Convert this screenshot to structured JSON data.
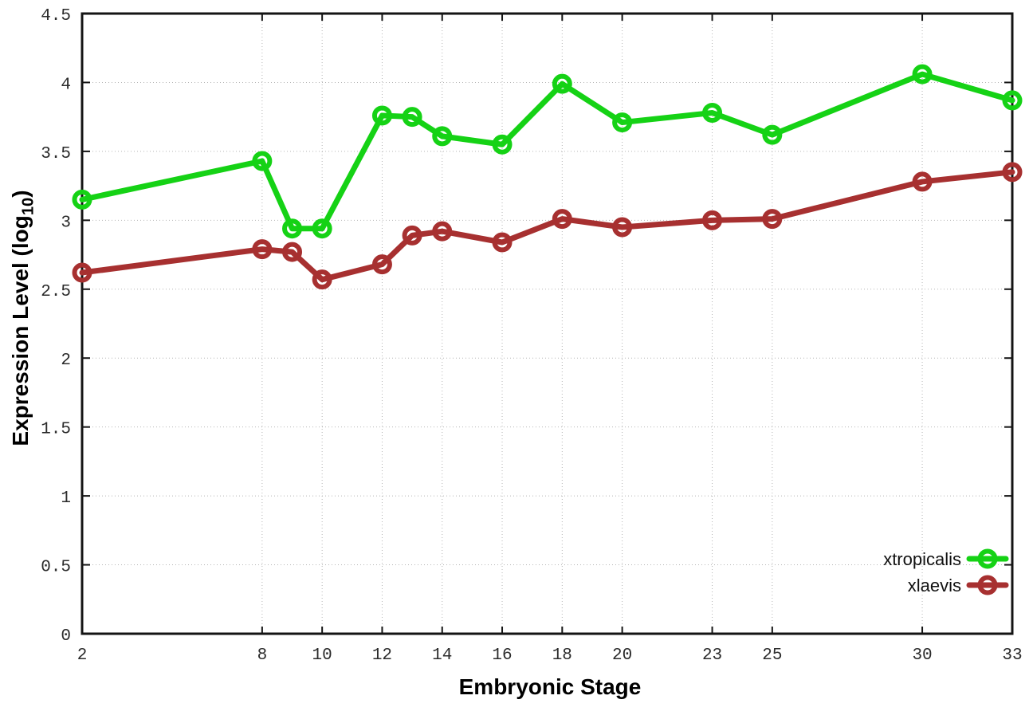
{
  "chart_data": {
    "type": "line",
    "title": "",
    "xlabel": "Embryonic Stage",
    "ylabel": "Expression Level (log10)",
    "ylabel_main": "Expression Level (log",
    "ylabel_sub": "10",
    "ylabel_suffix": ")",
    "xlim": [
      2,
      33
    ],
    "ylim": [
      0,
      4.5
    ],
    "grid": true,
    "legend_position": "bottom-right",
    "x_ticks": [
      2,
      8,
      10,
      12,
      14,
      16,
      18,
      20,
      23,
      25,
      30,
      33
    ],
    "y_ticks": [
      0,
      0.5,
      1,
      1.5,
      2,
      2.5,
      3,
      3.5,
      4,
      4.5
    ],
    "x": [
      2,
      8,
      9,
      10,
      12,
      13,
      14,
      16,
      18,
      20,
      23,
      25,
      30,
      33
    ],
    "series": [
      {
        "name": "xtropicalis",
        "color": "#15d215",
        "marker": "open-circle",
        "values": [
          3.15,
          3.43,
          2.94,
          2.94,
          3.76,
          3.75,
          3.61,
          3.55,
          3.99,
          3.71,
          3.78,
          3.62,
          4.06,
          3.87
        ]
      },
      {
        "name": "xlaevis",
        "color": "#a73030",
        "marker": "open-circle",
        "values": [
          2.62,
          2.79,
          2.77,
          2.57,
          2.68,
          2.89,
          2.92,
          2.84,
          3.01,
          2.95,
          3.0,
          3.01,
          3.28,
          3.35
        ]
      }
    ],
    "colors": {
      "background": "#ffffff",
      "border": "#141414",
      "grid": "#b5b5b5",
      "tick_label": "#2b2b2b"
    }
  }
}
